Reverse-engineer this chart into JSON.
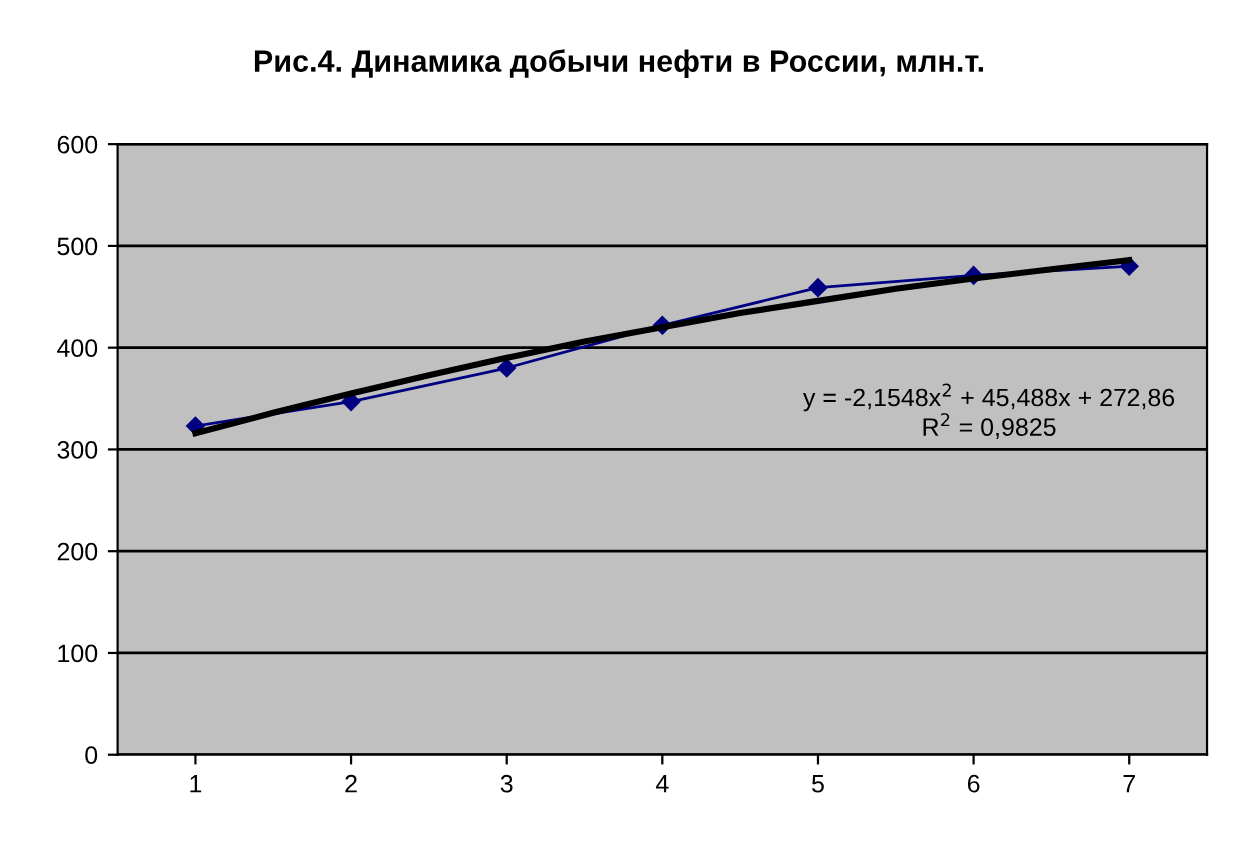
{
  "chart_data": {
    "type": "line",
    "title": "Рис.4. Динамика добычи нефти в России, млн.т.",
    "x": [
      1,
      2,
      3,
      4,
      5,
      6,
      7
    ],
    "xlim": [
      0.5,
      7.5
    ],
    "xticks": [
      1,
      2,
      3,
      4,
      5,
      6,
      7
    ],
    "ylim": [
      0,
      600
    ],
    "yticks": [
      0,
      100,
      200,
      300,
      400,
      500,
      600
    ],
    "grid": "y",
    "legend": false,
    "series": [
      {
        "color": "#000080",
        "marker": "diamond",
        "values": [
          323,
          347,
          380,
          422,
          459,
          471,
          480
        ]
      },
      {
        "color": "#000000",
        "marker": "none",
        "x": [
          1,
          1.5,
          2,
          2.5,
          3,
          3.5,
          4,
          4.5,
          5,
          5.5,
          6,
          6.5,
          7
        ],
        "values": [
          316,
          336,
          355,
          373,
          390,
          406,
          420,
          434,
          446,
          458,
          468,
          477,
          486
        ]
      }
    ],
    "annotations": [
      "y = -2,1548x$^{2}$ + 45,488x + 272,86",
      "R$^{2}$ = 0,9825"
    ]
  }
}
